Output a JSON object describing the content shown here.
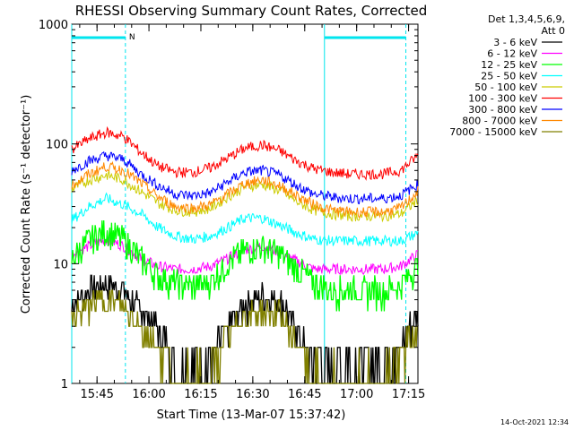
{
  "chart_data": {
    "type": "line",
    "title": "RHESSI Observing Summary Count Rates, Corrected",
    "xlabel": "Start Time (13-Mar-07 15:37:42)",
    "ylabel": "Corrected Count Rate (s⁻¹ detector⁻¹)",
    "y_scale": "log",
    "ylim": [
      1,
      1000
    ],
    "xlim_minutes": [
      0,
      100
    ],
    "x_ticks": [
      {
        "label": "15:45",
        "min": 7.3
      },
      {
        "label": "16:00",
        "min": 22.3
      },
      {
        "label": "16:15",
        "min": 37.3
      },
      {
        "label": "16:30",
        "min": 52.3
      },
      {
        "label": "16:45",
        "min": 67.3
      },
      {
        "label": "17:00",
        "min": 82.3
      },
      {
        "label": "17:15",
        "min": 97.3
      }
    ],
    "y_ticks": [
      {
        "label": "1",
        "value": 1
      },
      {
        "label": "10",
        "value": 10
      },
      {
        "label": "100",
        "value": 100
      },
      {
        "label": "1000",
        "value": 1000
      }
    ],
    "legend_header": [
      "Det 1,3,4,5,6,9,",
      "Att 0"
    ],
    "legend_placement": "right",
    "x_minutes": [
      0,
      5,
      10,
      15,
      20,
      25,
      30,
      35,
      40,
      45,
      50,
      55,
      60,
      65,
      70,
      75,
      80,
      85,
      90,
      95,
      100
    ],
    "series": [
      {
        "name": "3 - 6 keV",
        "color": "#000000",
        "values": [
          4.5,
          6.0,
          7.0,
          6.0,
          4.0,
          3.0,
          1.5,
          1.5,
          1.5,
          3.0,
          4.5,
          5.5,
          5.0,
          3.0,
          1.5,
          1.5,
          1.5,
          1.5,
          1.5,
          2.0,
          4.0
        ]
      },
      {
        "name": "6 - 12 keV",
        "color": "#ff00ff",
        "values": [
          12,
          14,
          16,
          14,
          11,
          9.5,
          9,
          9,
          9.5,
          11,
          13,
          14,
          12.5,
          10.5,
          9,
          9,
          9,
          9,
          9,
          9.5,
          12
        ]
      },
      {
        "name": "12 - 25 keV",
        "color": "#00ff00",
        "values": [
          11,
          16,
          19,
          16,
          11,
          8,
          7,
          6.5,
          7,
          10,
          13,
          14,
          12,
          9,
          7,
          6,
          6,
          6,
          6,
          6.5,
          10
        ]
      },
      {
        "name": "25 - 50 keV",
        "color": "#00ffff",
        "values": [
          23,
          30,
          35,
          31,
          26,
          20,
          17,
          16,
          17,
          20,
          24,
          24,
          21,
          18,
          16,
          15.5,
          15.5,
          15.5,
          15.5,
          15.5,
          18
        ]
      },
      {
        "name": "50 - 100 keV",
        "color": "#cccc00",
        "values": [
          42,
          50,
          55,
          50,
          40,
          32,
          28,
          27,
          29,
          36,
          44,
          46,
          41,
          33,
          28,
          26,
          25,
          25,
          25,
          26,
          34
        ]
      },
      {
        "name": "100 - 300 keV",
        "color": "#ff0000",
        "values": [
          90,
          110,
          125,
          115,
          85,
          65,
          58,
          58,
          63,
          76,
          92,
          98,
          88,
          72,
          62,
          58,
          56,
          56,
          56,
          60,
          80
        ]
      },
      {
        "name": "300 - 800 keV",
        "color": "#0000ff",
        "values": [
          60,
          72,
          80,
          74,
          56,
          45,
          38,
          37,
          39,
          48,
          58,
          60,
          55,
          45,
          38,
          36,
          35,
          35,
          35,
          37,
          46
        ]
      },
      {
        "name": "800 - 7000 keV",
        "color": "#ff8800",
        "values": [
          45,
          56,
          65,
          60,
          47,
          36,
          30,
          29,
          31,
          38,
          47,
          50,
          45,
          37,
          31,
          28,
          27,
          27,
          27,
          29,
          40
        ]
      },
      {
        "name": "7000 - 15000 keV",
        "color": "#808000",
        "values": [
          3.5,
          4.5,
          5.0,
          4.5,
          3.0,
          2.0,
          1.2,
          1.2,
          1.2,
          2.5,
          3.5,
          4.0,
          3.8,
          2.2,
          1.2,
          1.2,
          1.2,
          1.2,
          1.2,
          1.6,
          3.0
        ]
      }
    ],
    "annotations": {
      "top_marker_label": "N",
      "top_bar_intervals_min": [
        [
          0,
          15.5
        ],
        [
          73,
          96.5
        ]
      ],
      "vertical_lines_min": [
        0,
        15.5,
        73,
        96.5
      ],
      "color": "#00e5ee"
    }
  },
  "footer": {
    "timestamp": "14-Oct-2021 12:34"
  }
}
